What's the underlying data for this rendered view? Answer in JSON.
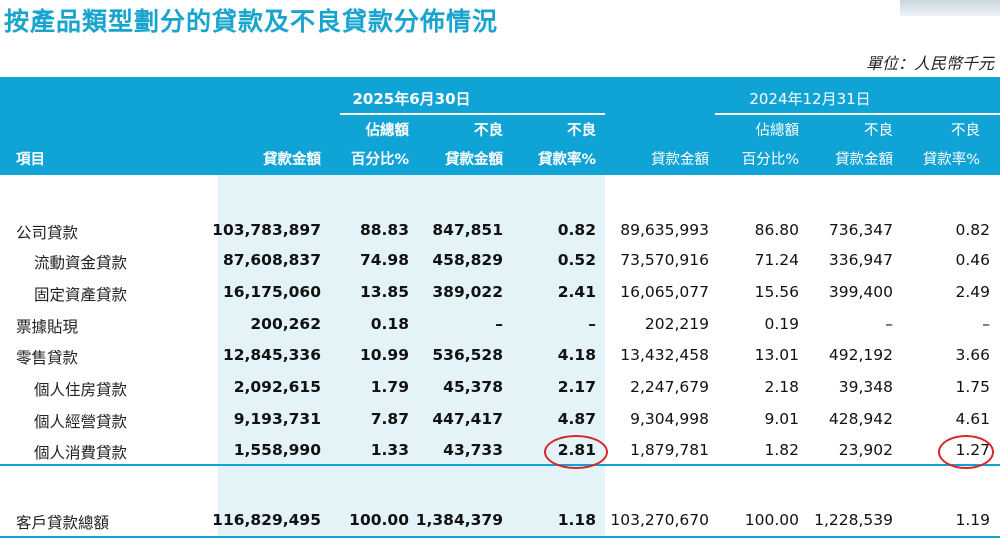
{
  "title": "按產品類型劃分的貸款及不良貸款分佈情況",
  "unit": "單位：人民幣千元",
  "header": {
    "item": "項目",
    "period_2025": "2025年6月30日",
    "period_2024": "2024年12月31日",
    "col_loan_amount": "貸款金額",
    "col_pct_top": "佔總額",
    "col_pct_bottom": "百分比%",
    "col_npl_top": "不良",
    "col_npl_bottom": "貸款金額",
    "col_nplr_top": "不良",
    "col_nplr_bottom": "貸款率%"
  },
  "rows": [
    {
      "label": "公司貸款",
      "v": [
        "103,783,897",
        "88.83",
        "847,851",
        "0.82",
        "89,635,993",
        "86.80",
        "736,347",
        "0.82"
      ]
    },
    {
      "label": "流動資金貸款",
      "v": [
        "87,608,837",
        "74.98",
        "458,829",
        "0.52",
        "73,570,916",
        "71.24",
        "336,947",
        "0.46"
      ]
    },
    {
      "label": "固定資產貸款",
      "v": [
        "16,175,060",
        "13.85",
        "389,022",
        "2.41",
        "16,065,077",
        "15.56",
        "399,400",
        "2.49"
      ]
    },
    {
      "label": "票據貼現",
      "v": [
        "200,262",
        "0.18",
        "–",
        "–",
        "202,219",
        "0.19",
        "–",
        "–"
      ]
    },
    {
      "label": "零售貸款",
      "v": [
        "12,845,336",
        "10.99",
        "536,528",
        "4.18",
        "13,432,458",
        "13.01",
        "492,192",
        "3.66"
      ]
    },
    {
      "label": "個人住房貸款",
      "v": [
        "2,092,615",
        "1.79",
        "45,378",
        "2.17",
        "2,247,679",
        "2.18",
        "39,348",
        "1.75"
      ]
    },
    {
      "label": "個人經營貸款",
      "v": [
        "9,193,731",
        "7.87",
        "447,417",
        "4.87",
        "9,304,998",
        "9.01",
        "428,942",
        "4.61"
      ]
    },
    {
      "label": "個人消費貸款",
      "v": [
        "1,558,990",
        "1.33",
        "43,733",
        "2.81",
        "1,879,781",
        "1.82",
        "23,902",
        "1.27"
      ]
    }
  ],
  "total": {
    "label": "客戶貸款總額",
    "v": [
      "116,829,495",
      "100.00",
      "1,384,379",
      "1.18",
      "103,270,670",
      "100.00",
      "1,228,539",
      "1.19"
    ]
  },
  "colors": {
    "header_bg": "#10a3d6",
    "title": "#19a4cf",
    "shade": "#e4f3f8",
    "highlight": "#d9252a"
  }
}
